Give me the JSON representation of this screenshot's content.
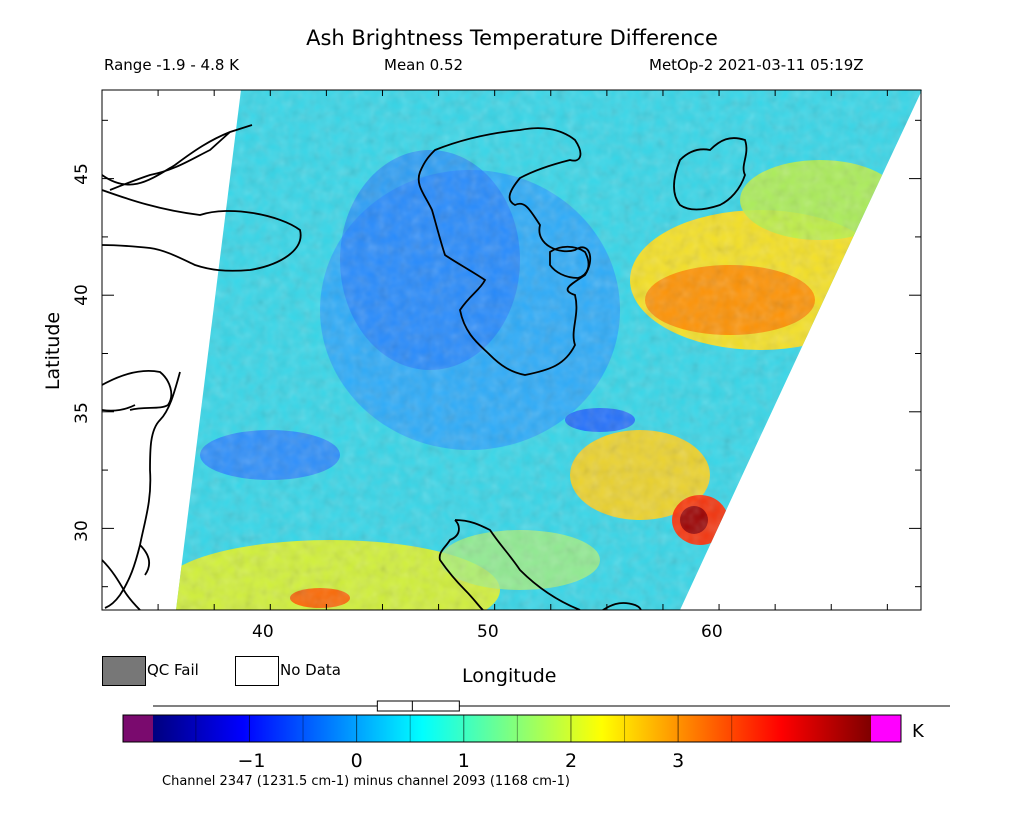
{
  "header": {
    "title": "Ash Brightness Temperature Difference",
    "range": "Range -1.9 - 4.8 K",
    "mean": "Mean 0.52",
    "satellite_time": "MetOp-2 2021-03-11 05:19Z"
  },
  "axes": {
    "x_label": "Longitude",
    "y_label": "Latitude",
    "x_ticks": [
      "40",
      "50",
      "60"
    ],
    "y_ticks": [
      "45",
      "40",
      "35",
      "30"
    ],
    "x_range": [
      33,
      69.5
    ],
    "y_range": [
      26.5,
      48.8
    ]
  },
  "legend": {
    "qc_fail": "QC Fail",
    "no_data": "No Data",
    "qc_fail_color": "#777777",
    "no_data_color": "#ffffff"
  },
  "colorbar": {
    "ticks": [
      "-1",
      "0",
      "1",
      "2",
      "3"
    ],
    "unit": "K",
    "under_color": "#7a0a6e",
    "over_color": "#ff00ff",
    "range": [
      -1.9,
      4.8
    ],
    "mean": 0.52,
    "colors": [
      "#00007f",
      "#0000ff",
      "#007fff",
      "#00ffff",
      "#7fff7f",
      "#ffff00",
      "#ff7f00",
      "#ff0000",
      "#7f0000"
    ]
  },
  "channel_label": "Channel 2347 (1231.5 cm-1) minus channel 2093 (1168 cm-1)"
}
